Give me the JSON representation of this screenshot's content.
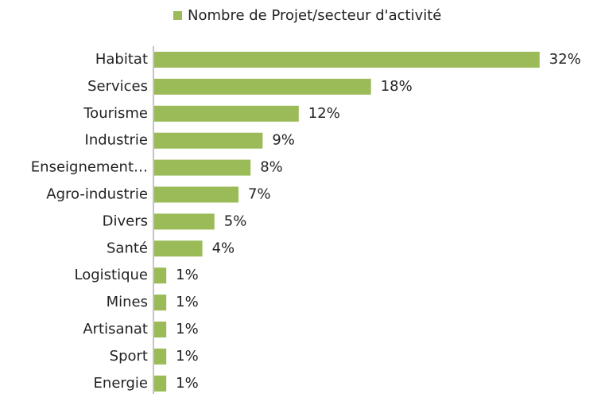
{
  "chart_data": {
    "type": "bar",
    "orientation": "horizontal",
    "categories": [
      "Habitat",
      "Services",
      "Tourisme",
      "Industrie",
      "Enseignement…",
      "Agro-industrie",
      "Divers",
      "Santé",
      "Logistique",
      "Mines",
      "Artisanat",
      "Sport",
      "Energie"
    ],
    "series": [
      {
        "name": "Nombre de Projet/secteur d'activité",
        "color": "#9bbb59",
        "values": [
          32,
          18,
          12,
          9,
          8,
          7,
          5,
          4,
          1,
          1,
          1,
          1,
          1
        ],
        "value_labels": [
          "32%",
          "18%",
          "12%",
          "9%",
          "8%",
          "7%",
          "5%",
          "4%",
          "1%",
          "1%",
          "1%",
          "1%",
          "1%"
        ]
      }
    ],
    "legend": "top"
  }
}
